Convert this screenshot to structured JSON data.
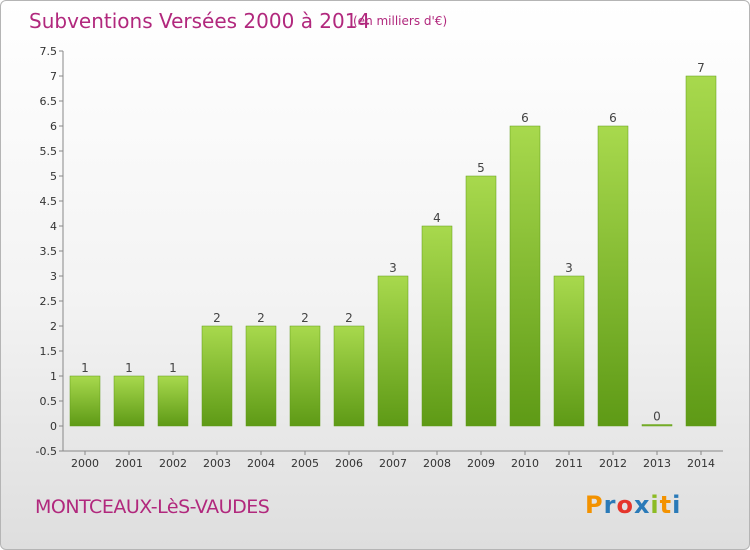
{
  "header": {
    "title": "Subventions Versées 2000 à 2014",
    "subtitle": "(en milliers d'€)"
  },
  "footer": {
    "commune": "MONTCEAUX-LèS-VAUDES",
    "logo_letters": [
      "P",
      "r",
      "o",
      "x",
      "i",
      "t",
      "i"
    ],
    "logo_colors": [
      "#f39200",
      "#2a7ab8",
      "#e5352b",
      "#2a7ab8",
      "#8cbb24",
      "#f39200",
      "#2a7ab8"
    ]
  },
  "chart_data": {
    "type": "bar",
    "title": "Subventions Versées 2000 à 2014",
    "subtitle": "(en milliers d'€)",
    "categories": [
      "2000",
      "2001",
      "2002",
      "2003",
      "2004",
      "2005",
      "2006",
      "2007",
      "2008",
      "2009",
      "2010",
      "2011",
      "2012",
      "2013",
      "2014"
    ],
    "values": [
      1,
      1,
      1,
      2,
      2,
      2,
      2,
      3,
      4,
      5,
      6,
      3,
      6,
      0,
      7
    ],
    "data_labels": [
      "1",
      "1",
      "1",
      "2",
      "2",
      "2",
      "2",
      "3",
      "4",
      "5",
      "6",
      "3",
      "6",
      "0",
      "7"
    ],
    "y_ticks": [
      "-0.5",
      "0",
      "0.5",
      "1",
      "1.5",
      "2",
      "2.5",
      "3",
      "3.5",
      "4",
      "4.5",
      "5",
      "5.5",
      "6",
      "6.5",
      "7",
      "7.5"
    ],
    "ylim": [
      -0.5,
      7.5
    ],
    "grid": false,
    "bar_color": "#7cba2e",
    "bar_color_light": "#a8d94d",
    "bar_color_dark": "#5e9a16"
  }
}
